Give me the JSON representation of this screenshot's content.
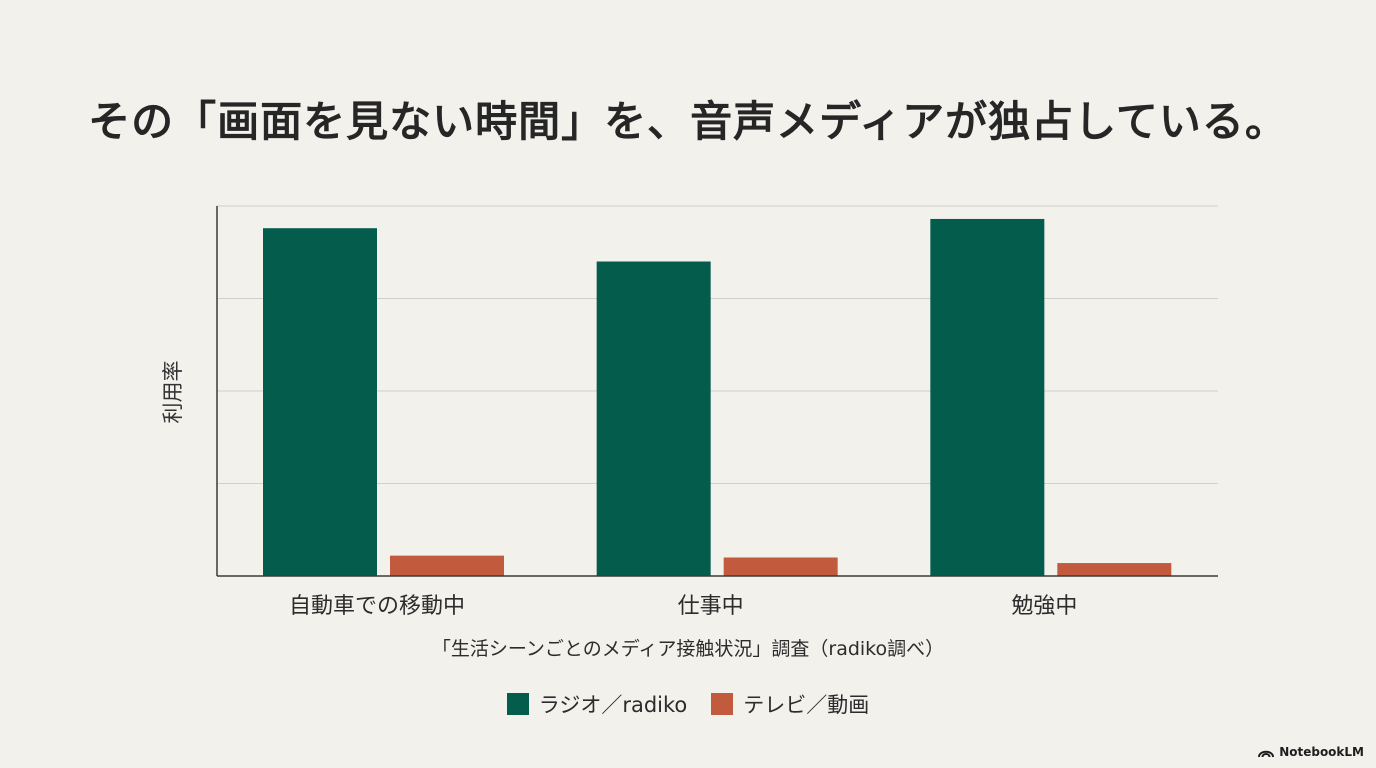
{
  "title": "その「画面を見ない時間」を、音声メディアが独占している。",
  "source_note": "「生活シーンごとのメディア接触状況」調査（radiko調べ）",
  "brand": {
    "label": "NotebookLM",
    "icon": "notebooklm-logo-icon"
  },
  "colors": {
    "radio": "#035c4c",
    "tv": "#c25b3e",
    "background": "#f2f1ec",
    "grid": "#cfcfcb",
    "axis": "#3a3a3a"
  },
  "chart_data": {
    "type": "bar",
    "categories": [
      "自動車での移動中",
      "仕事中",
      "勉強中"
    ],
    "series": [
      {
        "name": "ラジオ／radiko",
        "values": [
          94,
          85,
          96.5
        ]
      },
      {
        "name": "テレビ／動画",
        "values": [
          5.5,
          5,
          3.5
        ]
      }
    ],
    "ylabel": "利用率",
    "xlabel": "",
    "ylim": [
      0,
      100
    ],
    "yticks": [
      0,
      25,
      50,
      75,
      100
    ],
    "ytick_labels_shown": false,
    "grid": true,
    "legend_position": "bottom"
  }
}
